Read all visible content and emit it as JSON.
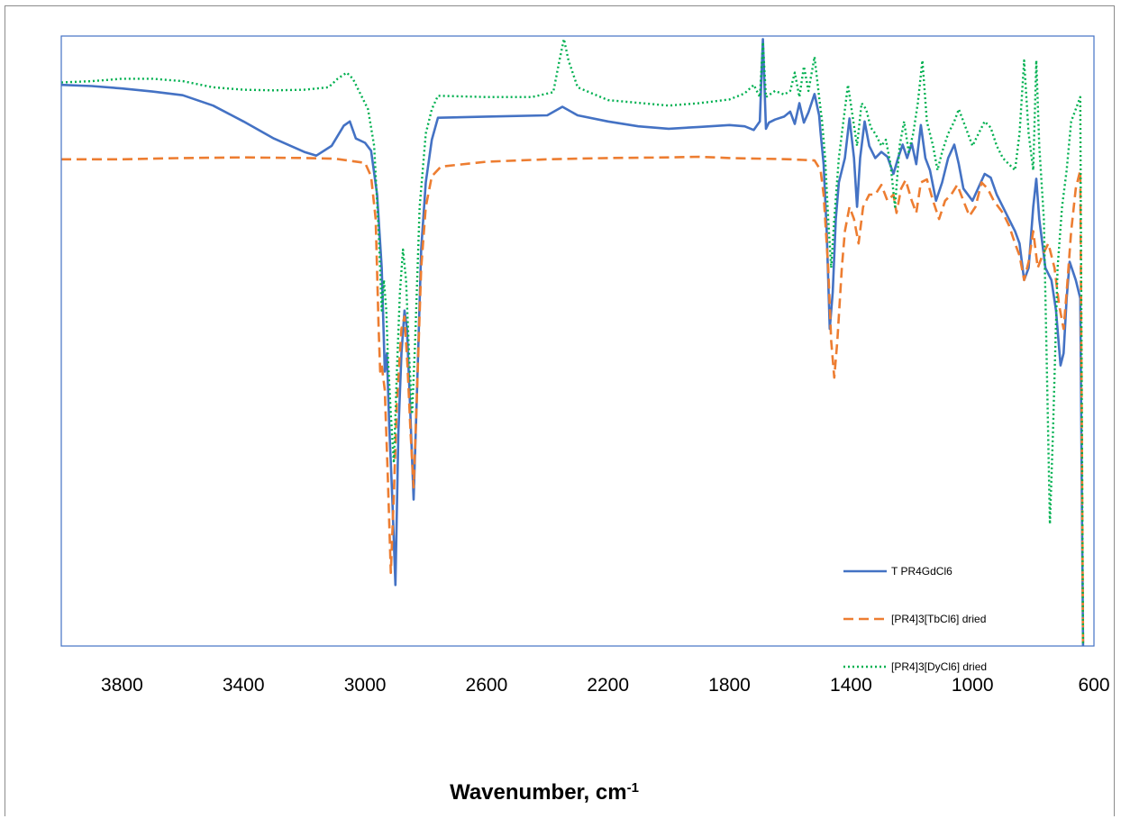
{
  "chart_data": {
    "type": "line",
    "title": "",
    "xlabel": "Wavenumber, cm",
    "xlabel_superscript": "-1",
    "ylabel": "",
    "xlim": [
      4000,
      600
    ],
    "x_reversed": true,
    "ylim": [
      0,
      100
    ],
    "y_axis_visible": false,
    "grid": false,
    "xticks": [
      3800,
      3400,
      3000,
      2600,
      2200,
      1800,
      1400,
      1000,
      600
    ],
    "xtick_labels": [
      "3800",
      "3400",
      "3000",
      "2600",
      "2200",
      "1800",
      "1400",
      "1000",
      "600"
    ],
    "legend_position": "bottom-right",
    "series": [
      {
        "name": "T PR4GdCl6",
        "color": "#4472C4",
        "dash": "solid",
        "points": [
          [
            4000,
            92.0
          ],
          [
            3900,
            91.8
          ],
          [
            3800,
            91.4
          ],
          [
            3700,
            90.9
          ],
          [
            3600,
            90.3
          ],
          [
            3500,
            88.6
          ],
          [
            3400,
            86.0
          ],
          [
            3300,
            83.2
          ],
          [
            3200,
            81.0
          ],
          [
            3160,
            80.4
          ],
          [
            3110,
            82.0
          ],
          [
            3070,
            85.3
          ],
          [
            3050,
            86.0
          ],
          [
            3030,
            83.2
          ],
          [
            3000,
            82.5
          ],
          [
            2980,
            81.2
          ],
          [
            2960,
            74.0
          ],
          [
            2945,
            62.0
          ],
          [
            2935,
            45.0
          ],
          [
            2928,
            48.0
          ],
          [
            2920,
            36.0
          ],
          [
            2910,
            24.0
          ],
          [
            2900,
            10.0
          ],
          [
            2890,
            35.0
          ],
          [
            2880,
            48.0
          ],
          [
            2870,
            55.0
          ],
          [
            2862,
            52.0
          ],
          [
            2852,
            40.0
          ],
          [
            2840,
            24.0
          ],
          [
            2830,
            40.0
          ],
          [
            2815,
            65.0
          ],
          [
            2800,
            76.0
          ],
          [
            2780,
            83.0
          ],
          [
            2760,
            86.6
          ],
          [
            2600,
            86.8
          ],
          [
            2400,
            87.0
          ],
          [
            2350,
            88.4
          ],
          [
            2300,
            87.0
          ],
          [
            2200,
            86.0
          ],
          [
            2100,
            85.2
          ],
          [
            2000,
            84.8
          ],
          [
            1900,
            85.1
          ],
          [
            1800,
            85.4
          ],
          [
            1750,
            85.2
          ],
          [
            1720,
            84.6
          ],
          [
            1700,
            86.0
          ],
          [
            1690,
            99.5
          ],
          [
            1680,
            84.8
          ],
          [
            1670,
            85.8
          ],
          [
            1650,
            86.3
          ],
          [
            1620,
            86.8
          ],
          [
            1600,
            87.6
          ],
          [
            1585,
            85.6
          ],
          [
            1570,
            89.0
          ],
          [
            1555,
            85.8
          ],
          [
            1540,
            87.5
          ],
          [
            1520,
            90.5
          ],
          [
            1505,
            87.0
          ],
          [
            1500,
            84.2
          ],
          [
            1490,
            79.0
          ],
          [
            1480,
            68.0
          ],
          [
            1470,
            52.0
          ],
          [
            1460,
            58.0
          ],
          [
            1450,
            70.0
          ],
          [
            1440,
            76.0
          ],
          [
            1420,
            80.0
          ],
          [
            1405,
            86.5
          ],
          [
            1390,
            80.0
          ],
          [
            1380,
            72.0
          ],
          [
            1370,
            80.0
          ],
          [
            1355,
            86.0
          ],
          [
            1340,
            82.0
          ],
          [
            1320,
            80.0
          ],
          [
            1300,
            81.0
          ],
          [
            1280,
            80.2
          ],
          [
            1260,
            77.4
          ],
          [
            1245,
            80.0
          ],
          [
            1230,
            82.2
          ],
          [
            1215,
            80.0
          ],
          [
            1200,
            82.4
          ],
          [
            1185,
            79.0
          ],
          [
            1170,
            85.4
          ],
          [
            1155,
            80.0
          ],
          [
            1140,
            78.0
          ],
          [
            1120,
            73.0
          ],
          [
            1100,
            76.0
          ],
          [
            1080,
            80.0
          ],
          [
            1060,
            82.2
          ],
          [
            1045,
            79.0
          ],
          [
            1030,
            75.0
          ],
          [
            1000,
            73.0
          ],
          [
            960,
            77.4
          ],
          [
            940,
            76.8
          ],
          [
            920,
            74.0
          ],
          [
            900,
            72.0
          ],
          [
            880,
            70.0
          ],
          [
            860,
            68.0
          ],
          [
            845,
            66.0
          ],
          [
            830,
            60.0
          ],
          [
            815,
            62.0
          ],
          [
            800,
            72.0
          ],
          [
            790,
            76.6
          ],
          [
            780,
            70.0
          ],
          [
            760,
            62.0
          ],
          [
            740,
            60.0
          ],
          [
            725,
            55.0
          ],
          [
            710,
            46.0
          ],
          [
            700,
            48.0
          ],
          [
            690,
            57.0
          ],
          [
            680,
            63.0
          ],
          [
            660,
            60.0
          ],
          [
            645,
            57.0
          ],
          [
            636,
            0.0
          ]
        ]
      },
      {
        "name": "[PR4]3[TbCl6]  dried",
        "color": "#ED7D31",
        "dash": "dashed",
        "points": [
          [
            4000,
            79.8
          ],
          [
            3800,
            79.8
          ],
          [
            3600,
            80.0
          ],
          [
            3400,
            80.1
          ],
          [
            3200,
            80.0
          ],
          [
            3100,
            79.9
          ],
          [
            3000,
            79.2
          ],
          [
            2980,
            77.0
          ],
          [
            2965,
            70.0
          ],
          [
            2955,
            52.0
          ],
          [
            2950,
            45.0
          ],
          [
            2945,
            46.0
          ],
          [
            2935,
            42.0
          ],
          [
            2925,
            28.0
          ],
          [
            2915,
            12.0
          ],
          [
            2905,
            25.0
          ],
          [
            2895,
            40.0
          ],
          [
            2880,
            52.0
          ],
          [
            2870,
            54.0
          ],
          [
            2860,
            46.0
          ],
          [
            2850,
            35.0
          ],
          [
            2840,
            26.0
          ],
          [
            2830,
            40.0
          ],
          [
            2815,
            62.0
          ],
          [
            2800,
            72.0
          ],
          [
            2780,
            77.0
          ],
          [
            2750,
            78.6
          ],
          [
            2600,
            79.4
          ],
          [
            2400,
            79.8
          ],
          [
            2200,
            80.0
          ],
          [
            2000,
            80.1
          ],
          [
            1900,
            80.2
          ],
          [
            1800,
            80.0
          ],
          [
            1600,
            79.8
          ],
          [
            1520,
            79.6
          ],
          [
            1500,
            78.0
          ],
          [
            1490,
            74.0
          ],
          [
            1475,
            62.0
          ],
          [
            1465,
            50.0
          ],
          [
            1455,
            44.0
          ],
          [
            1445,
            50.0
          ],
          [
            1430,
            62.0
          ],
          [
            1420,
            68.0
          ],
          [
            1405,
            72.0
          ],
          [
            1390,
            70.0
          ],
          [
            1375,
            66.0
          ],
          [
            1360,
            72.0
          ],
          [
            1340,
            74.0
          ],
          [
            1320,
            74.0
          ],
          [
            1300,
            75.6
          ],
          [
            1280,
            73.0
          ],
          [
            1260,
            74.0
          ],
          [
            1250,
            71.0
          ],
          [
            1235,
            75.0
          ],
          [
            1220,
            76.4
          ],
          [
            1200,
            73.0
          ],
          [
            1185,
            71.0
          ],
          [
            1170,
            76.0
          ],
          [
            1150,
            76.5
          ],
          [
            1130,
            73.0
          ],
          [
            1110,
            70.0
          ],
          [
            1090,
            73.0
          ],
          [
            1070,
            74.0
          ],
          [
            1050,
            75.6
          ],
          [
            1030,
            73.0
          ],
          [
            1010,
            70.5
          ],
          [
            990,
            72.0
          ],
          [
            970,
            76.0
          ],
          [
            950,
            75.0
          ],
          [
            930,
            73.0
          ],
          [
            900,
            71.0
          ],
          [
            880,
            69.0
          ],
          [
            860,
            66.0
          ],
          [
            845,
            64.0
          ],
          [
            830,
            60.0
          ],
          [
            815,
            63.0
          ],
          [
            800,
            68.0
          ],
          [
            785,
            62.0
          ],
          [
            770,
            64.0
          ],
          [
            750,
            66.0
          ],
          [
            730,
            62.0
          ],
          [
            715,
            56.0
          ],
          [
            700,
            52.0
          ],
          [
            690,
            58.0
          ],
          [
            675,
            68.0
          ],
          [
            660,
            75.0
          ],
          [
            645,
            78.0
          ],
          [
            636,
            0.0
          ]
        ]
      },
      {
        "name": "[PR4]3[DyCl6]  dried",
        "color": "#00B050",
        "dash": "dotted",
        "points": [
          [
            4000,
            92.4
          ],
          [
            3900,
            92.6
          ],
          [
            3800,
            93.0
          ],
          [
            3700,
            93.0
          ],
          [
            3600,
            92.6
          ],
          [
            3500,
            91.6
          ],
          [
            3400,
            91.2
          ],
          [
            3300,
            91.1
          ],
          [
            3200,
            91.2
          ],
          [
            3120,
            91.6
          ],
          [
            3090,
            93.0
          ],
          [
            3060,
            94.0
          ],
          [
            3040,
            93.0
          ],
          [
            3010,
            90.0
          ],
          [
            2990,
            88.0
          ],
          [
            2970,
            82.0
          ],
          [
            2955,
            68.0
          ],
          [
            2945,
            55.0
          ],
          [
            2938,
            60.0
          ],
          [
            2930,
            55.0
          ],
          [
            2925,
            48.0
          ],
          [
            2915,
            38.0
          ],
          [
            2905,
            30.0
          ],
          [
            2895,
            45.0
          ],
          [
            2885,
            58.0
          ],
          [
            2875,
            65.0
          ],
          [
            2865,
            60.0
          ],
          [
            2855,
            48.0
          ],
          [
            2845,
            38.0
          ],
          [
            2835,
            50.0
          ],
          [
            2820,
            72.0
          ],
          [
            2800,
            84.0
          ],
          [
            2780,
            88.0
          ],
          [
            2760,
            90.2
          ],
          [
            2600,
            90.0
          ],
          [
            2450,
            90.0
          ],
          [
            2380,
            90.8
          ],
          [
            2360,
            96.0
          ],
          [
            2345,
            99.5
          ],
          [
            2330,
            96.0
          ],
          [
            2300,
            91.6
          ],
          [
            2200,
            89.5
          ],
          [
            2000,
            88.6
          ],
          [
            1900,
            89.0
          ],
          [
            1800,
            89.6
          ],
          [
            1750,
            90.6
          ],
          [
            1720,
            92.0
          ],
          [
            1700,
            90.0
          ],
          [
            1690,
            99.0
          ],
          [
            1680,
            90.0
          ],
          [
            1650,
            91.0
          ],
          [
            1620,
            90.4
          ],
          [
            1600,
            91.0
          ],
          [
            1585,
            94.0
          ],
          [
            1570,
            90.0
          ],
          [
            1555,
            95.0
          ],
          [
            1540,
            91.0
          ],
          [
            1520,
            96.6
          ],
          [
            1505,
            90.0
          ],
          [
            1495,
            86.0
          ],
          [
            1485,
            80.0
          ],
          [
            1475,
            70.0
          ],
          [
            1465,
            62.0
          ],
          [
            1455,
            70.0
          ],
          [
            1440,
            80.0
          ],
          [
            1425,
            86.0
          ],
          [
            1410,
            92.0
          ],
          [
            1395,
            87.0
          ],
          [
            1380,
            82.0
          ],
          [
            1365,
            89.0
          ],
          [
            1350,
            88.0
          ],
          [
            1335,
            85.0
          ],
          [
            1320,
            84.0
          ],
          [
            1300,
            82.0
          ],
          [
            1285,
            83.0
          ],
          [
            1270,
            79.0
          ],
          [
            1255,
            72.0
          ],
          [
            1240,
            82.0
          ],
          [
            1225,
            86.0
          ],
          [
            1210,
            81.0
          ],
          [
            1195,
            84.0
          ],
          [
            1180,
            89.0
          ],
          [
            1165,
            96.0
          ],
          [
            1150,
            86.0
          ],
          [
            1130,
            82.0
          ],
          [
            1115,
            78.0
          ],
          [
            1100,
            81.0
          ],
          [
            1080,
            84.0
          ],
          [
            1060,
            86.0
          ],
          [
            1045,
            88.0
          ],
          [
            1030,
            86.0
          ],
          [
            1000,
            82.0
          ],
          [
            980,
            84.0
          ],
          [
            960,
            86.0
          ],
          [
            940,
            85.0
          ],
          [
            920,
            82.0
          ],
          [
            900,
            80.0
          ],
          [
            880,
            79.0
          ],
          [
            860,
            78.0
          ],
          [
            845,
            84.0
          ],
          [
            830,
            96.0
          ],
          [
            815,
            84.0
          ],
          [
            800,
            78.0
          ],
          [
            790,
            96.0
          ],
          [
            780,
            82.0
          ],
          [
            765,
            70.0
          ],
          [
            755,
            45.0
          ],
          [
            745,
            20.0
          ],
          [
            735,
            35.0
          ],
          [
            720,
            62.0
          ],
          [
            705,
            72.0
          ],
          [
            690,
            78.0
          ],
          [
            675,
            86.0
          ],
          [
            660,
            88.0
          ],
          [
            645,
            90.0
          ],
          [
            636,
            0.0
          ]
        ]
      }
    ]
  }
}
